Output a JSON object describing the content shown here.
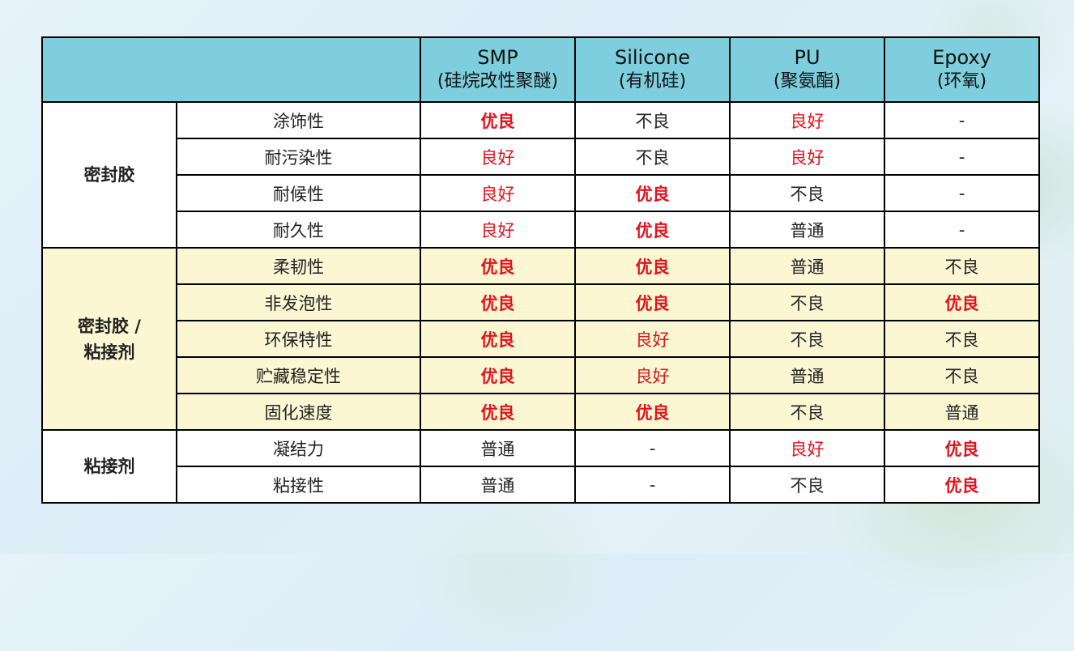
{
  "headers": {
    "corner": "",
    "cols": [
      {
        "line1": "SMP",
        "line2": "(硅烷改性聚醚)"
      },
      {
        "line1": "Silicone",
        "line2": "(有机硅)"
      },
      {
        "line1": "PU",
        "line2": "(聚氨酯)"
      },
      {
        "line1": "Epoxy",
        "line2": "(环氧)"
      }
    ]
  },
  "groups": {
    "g1": "密封胶",
    "g2_line1": "密封胶 /",
    "g2_line2": "粘接剂",
    "g3": "粘接剂"
  },
  "rows": [
    {
      "label": "涂饰性",
      "cells": [
        "优良",
        "不良",
        "良好",
        "-"
      ]
    },
    {
      "label": "耐污染性",
      "cells": [
        "良好",
        "不良",
        "良好",
        "-"
      ]
    },
    {
      "label": "耐候性",
      "cells": [
        "良好",
        "优良",
        "不良",
        "-"
      ]
    },
    {
      "label": "耐久性",
      "cells": [
        "良好",
        "优良",
        "普通",
        "-"
      ]
    },
    {
      "label": "柔韧性",
      "cells": [
        "优良",
        "优良",
        "普通",
        "不良"
      ]
    },
    {
      "label": "非发泡性",
      "cells": [
        "优良",
        "优良",
        "不良",
        "优良"
      ]
    },
    {
      "label": "环保特性",
      "cells": [
        "优良",
        "良好",
        "不良",
        "不良"
      ]
    },
    {
      "label": "贮藏稳定性",
      "cells": [
        "优良",
        "良好",
        "普通",
        "不良"
      ]
    },
    {
      "label": "固化速度",
      "cells": [
        "优良",
        "优良",
        "不良",
        "普通"
      ]
    },
    {
      "label": "凝结力",
      "cells": [
        "普通",
        "-",
        "良好",
        "优良"
      ]
    },
    {
      "label": "粘接性",
      "cells": [
        "普通",
        "-",
        "不良",
        "优良"
      ]
    }
  ],
  "colors": {
    "header_bg": "#7ecedd",
    "highlight_bg": "#fbf7d3",
    "good_text": "#e0141e"
  }
}
